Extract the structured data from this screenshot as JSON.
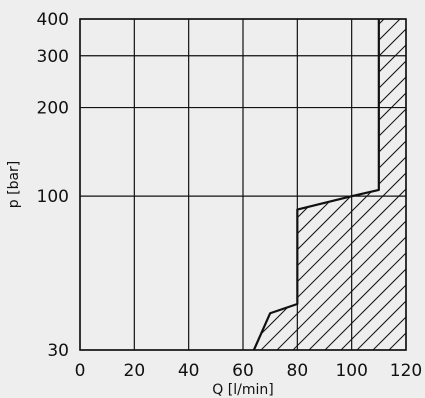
{
  "chart_data": {
    "type": "area",
    "xlabel": "Q [l/min]",
    "ylabel": "p [bar]",
    "xlim": [
      0,
      120
    ],
    "ylim": [
      30,
      400
    ],
    "y_scale": "log",
    "grid": true,
    "x_ticks": [
      0,
      20,
      40,
      60,
      80,
      100,
      120
    ],
    "y_ticks": [
      30,
      100,
      200,
      300,
      400
    ],
    "hatch": "diagonal",
    "boundary": {
      "x": [
        64,
        70,
        80,
        80,
        100,
        110,
        110
      ],
      "y": [
        30,
        40,
        43,
        90,
        100,
        105,
        400
      ]
    },
    "colors": {
      "background": "#eeeeee",
      "lines": "#111111"
    }
  }
}
